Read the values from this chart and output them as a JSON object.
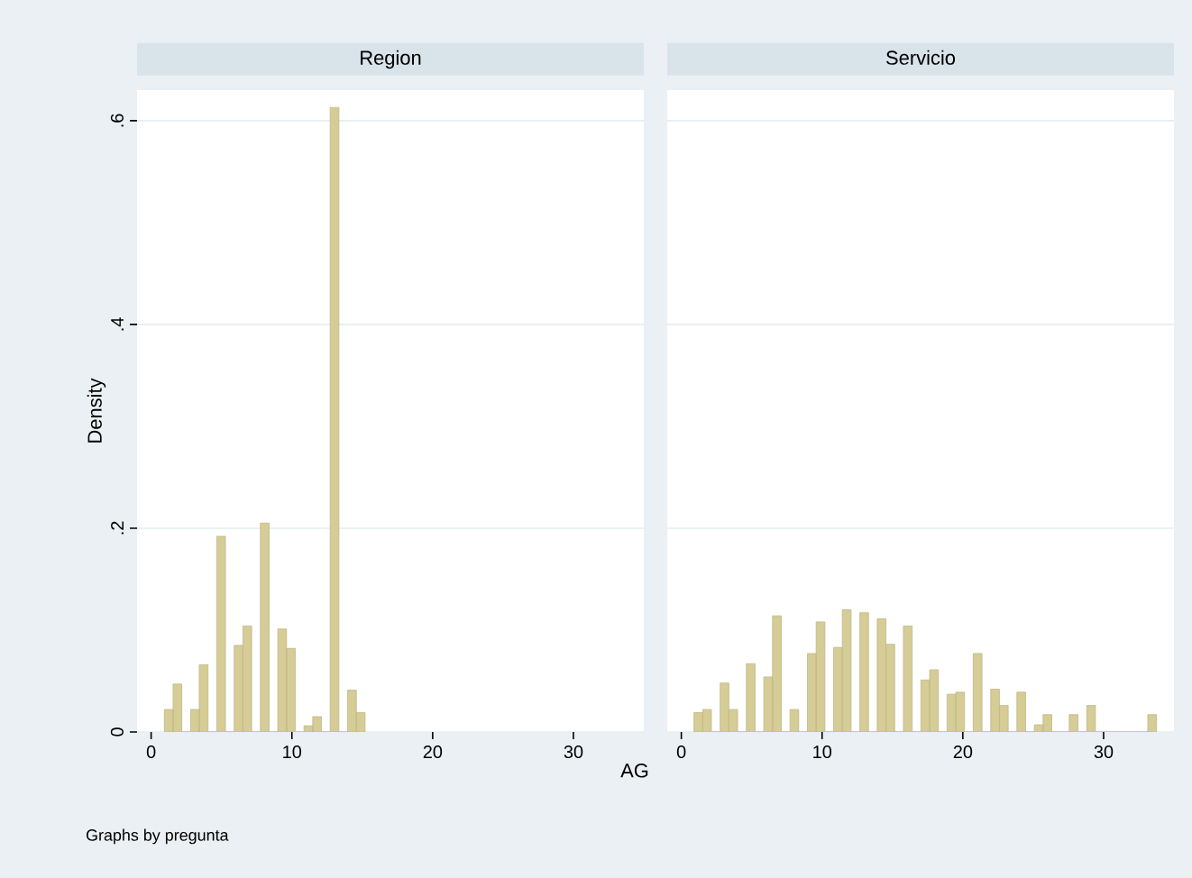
{
  "chart_data": [
    {
      "type": "histogram",
      "title": "Region",
      "ylabel": "Density",
      "color": "#d6cc96",
      "grid": "y",
      "bins": [
        0.94,
        1.56,
        2.18,
        2.8,
        3.42,
        4.04,
        4.66,
        5.28,
        5.9,
        6.52,
        7.14,
        7.76,
        8.38,
        9.0,
        9.62,
        10.24,
        10.86,
        11.48,
        12.1,
        12.72,
        13.34,
        13.96,
        14.58,
        15.2
      ],
      "values": [
        0.022,
        0.047,
        0,
        0.022,
        0.066,
        0,
        0.192,
        0,
        0.085,
        0.104,
        0,
        0.205,
        0,
        0.101,
        0.082,
        0,
        0.006,
        0.015,
        0,
        0.613,
        0,
        0.041,
        0.019
      ],
      "xlim": [
        -1,
        35
      ],
      "ylim": [
        0,
        0.63
      ],
      "xticks": [
        0,
        10,
        20,
        30
      ],
      "yticks": [
        0,
        {
          "value": 0.2,
          "label": ".2"
        },
        {
          "value": 0.4,
          "label": ".4"
        },
        {
          "value": 0.6,
          "label": ".6"
        }
      ],
      "annotations": [
        "Graphs by pregunta"
      ]
    },
    {
      "type": "histogram",
      "title": "Servicio",
      "xlabel": "AG",
      "color": "#d6cc96",
      "grid": "y",
      "tick_labels": "x",
      "bins": [
        0.9,
        1.52,
        2.14,
        2.76,
        3.38,
        4.0,
        4.62,
        5.24,
        5.86,
        6.48,
        7.1,
        7.72,
        8.34,
        8.96,
        9.58,
        10.2,
        10.82,
        11.44,
        12.06,
        12.68,
        13.3,
        13.92,
        14.54,
        15.16,
        15.78,
        16.4,
        17.02,
        17.64,
        18.26,
        18.88,
        19.5,
        20.12,
        20.74,
        21.36,
        21.98,
        22.6,
        23.22,
        23.84,
        24.46,
        25.08,
        25.7,
        26.32,
        26.94,
        27.56,
        28.18,
        28.8,
        29.42,
        30.04,
        30.66,
        31.28,
        31.9,
        32.52,
        33.14,
        33.76
      ],
      "values": [
        0.019,
        0.022,
        0,
        0.048,
        0.022,
        0,
        0.067,
        0,
        0.054,
        0.114,
        0,
        0.022,
        0,
        0.077,
        0.108,
        0,
        0.083,
        0.12,
        0,
        0.117,
        0,
        0.111,
        0.086,
        0,
        0.104,
        0,
        0.051,
        0.061,
        0,
        0.037,
        0.039,
        0,
        0.077,
        0,
        0.042,
        0.026,
        0,
        0.039,
        0,
        0.007,
        0.017,
        0,
        0,
        0.017,
        0,
        0.026,
        0,
        0,
        0,
        0,
        0,
        0,
        0.017
      ],
      "xlim": [
        -1,
        35
      ],
      "ylim": [
        0,
        0.63
      ],
      "xticks": [
        0,
        10,
        20,
        30
      ],
      "yticks": [
        0,
        0.2,
        0.4,
        0.6
      ]
    }
  ]
}
